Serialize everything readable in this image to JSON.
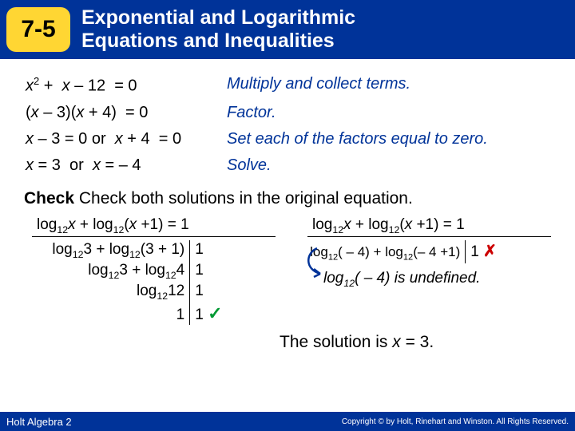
{
  "header": {
    "badge": "7-5",
    "title_line1": "Exponential and Logarithmic",
    "title_line2": "Equations and Inequalities"
  },
  "steps": [
    {
      "left_html": "<i>x</i><sup>2</sup> + &nbsp;<i>x</i> – 12 &nbsp;= 0",
      "right": "Multiply and collect terms."
    },
    {
      "left_html": "(<i>x</i> – 3)(<i>x</i> + 4) &nbsp;= 0",
      "right": "Factor.",
      "left_pad": "-10px"
    },
    {
      "left_html": "<i>x</i> – 3 = 0 or &nbsp;<i>x</i> + 4 &nbsp;= 0",
      "right": "Set each of the factors equal to zero."
    },
    {
      "left_html": "<i>x</i> = 3 &nbsp;or &nbsp;<i>x</i> = – 4",
      "right": "Solve."
    }
  ],
  "check_label": "Check",
  "check_text": "Check both solutions in the original equation.",
  "left_check": {
    "header_html": "log<sub>12</sub><i>x</i> + log<sub>12</sub>(<i>x</i> +1) = 1",
    "rows": [
      {
        "l_html": "log<sub>12</sub>3 + log<sub>12</sub>(3 + 1)",
        "r": "1"
      },
      {
        "l_html": "log<sub>12</sub>3 + log<sub>12</sub>4",
        "r": "1"
      },
      {
        "l_html": "log<sub>12</sub>12",
        "r": "1"
      },
      {
        "l_html": "1",
        "r_html": "1 <span class=\"tick\">✓</span>"
      }
    ]
  },
  "right_check": {
    "header_html": "log<sub>12</sub><i>x</i> + log<sub>12</sub>(<i>x</i> +1) = 1",
    "row": {
      "l_html": "log<sub>12</sub>( – 4) + log<sub>12</sub>(– 4 +1)",
      "r_html": "1 <span class=\"cross\">✗</span>"
    },
    "note_html": "log<sub>12</sub>( – 4) <i>is undefined.</i>"
  },
  "solution_html": "The solution is <i>x</i> = 3.",
  "footer": {
    "left": "Holt Algebra 2",
    "right": "Copyright © by Holt, Rinehart and Winston. All Rights Reserved."
  },
  "colors": {
    "header_bg": "#003399",
    "badge_bg": "#ffd633",
    "step_right": "#003399",
    "tick": "#009933",
    "cross": "#cc0000",
    "arrow": "#003399"
  }
}
